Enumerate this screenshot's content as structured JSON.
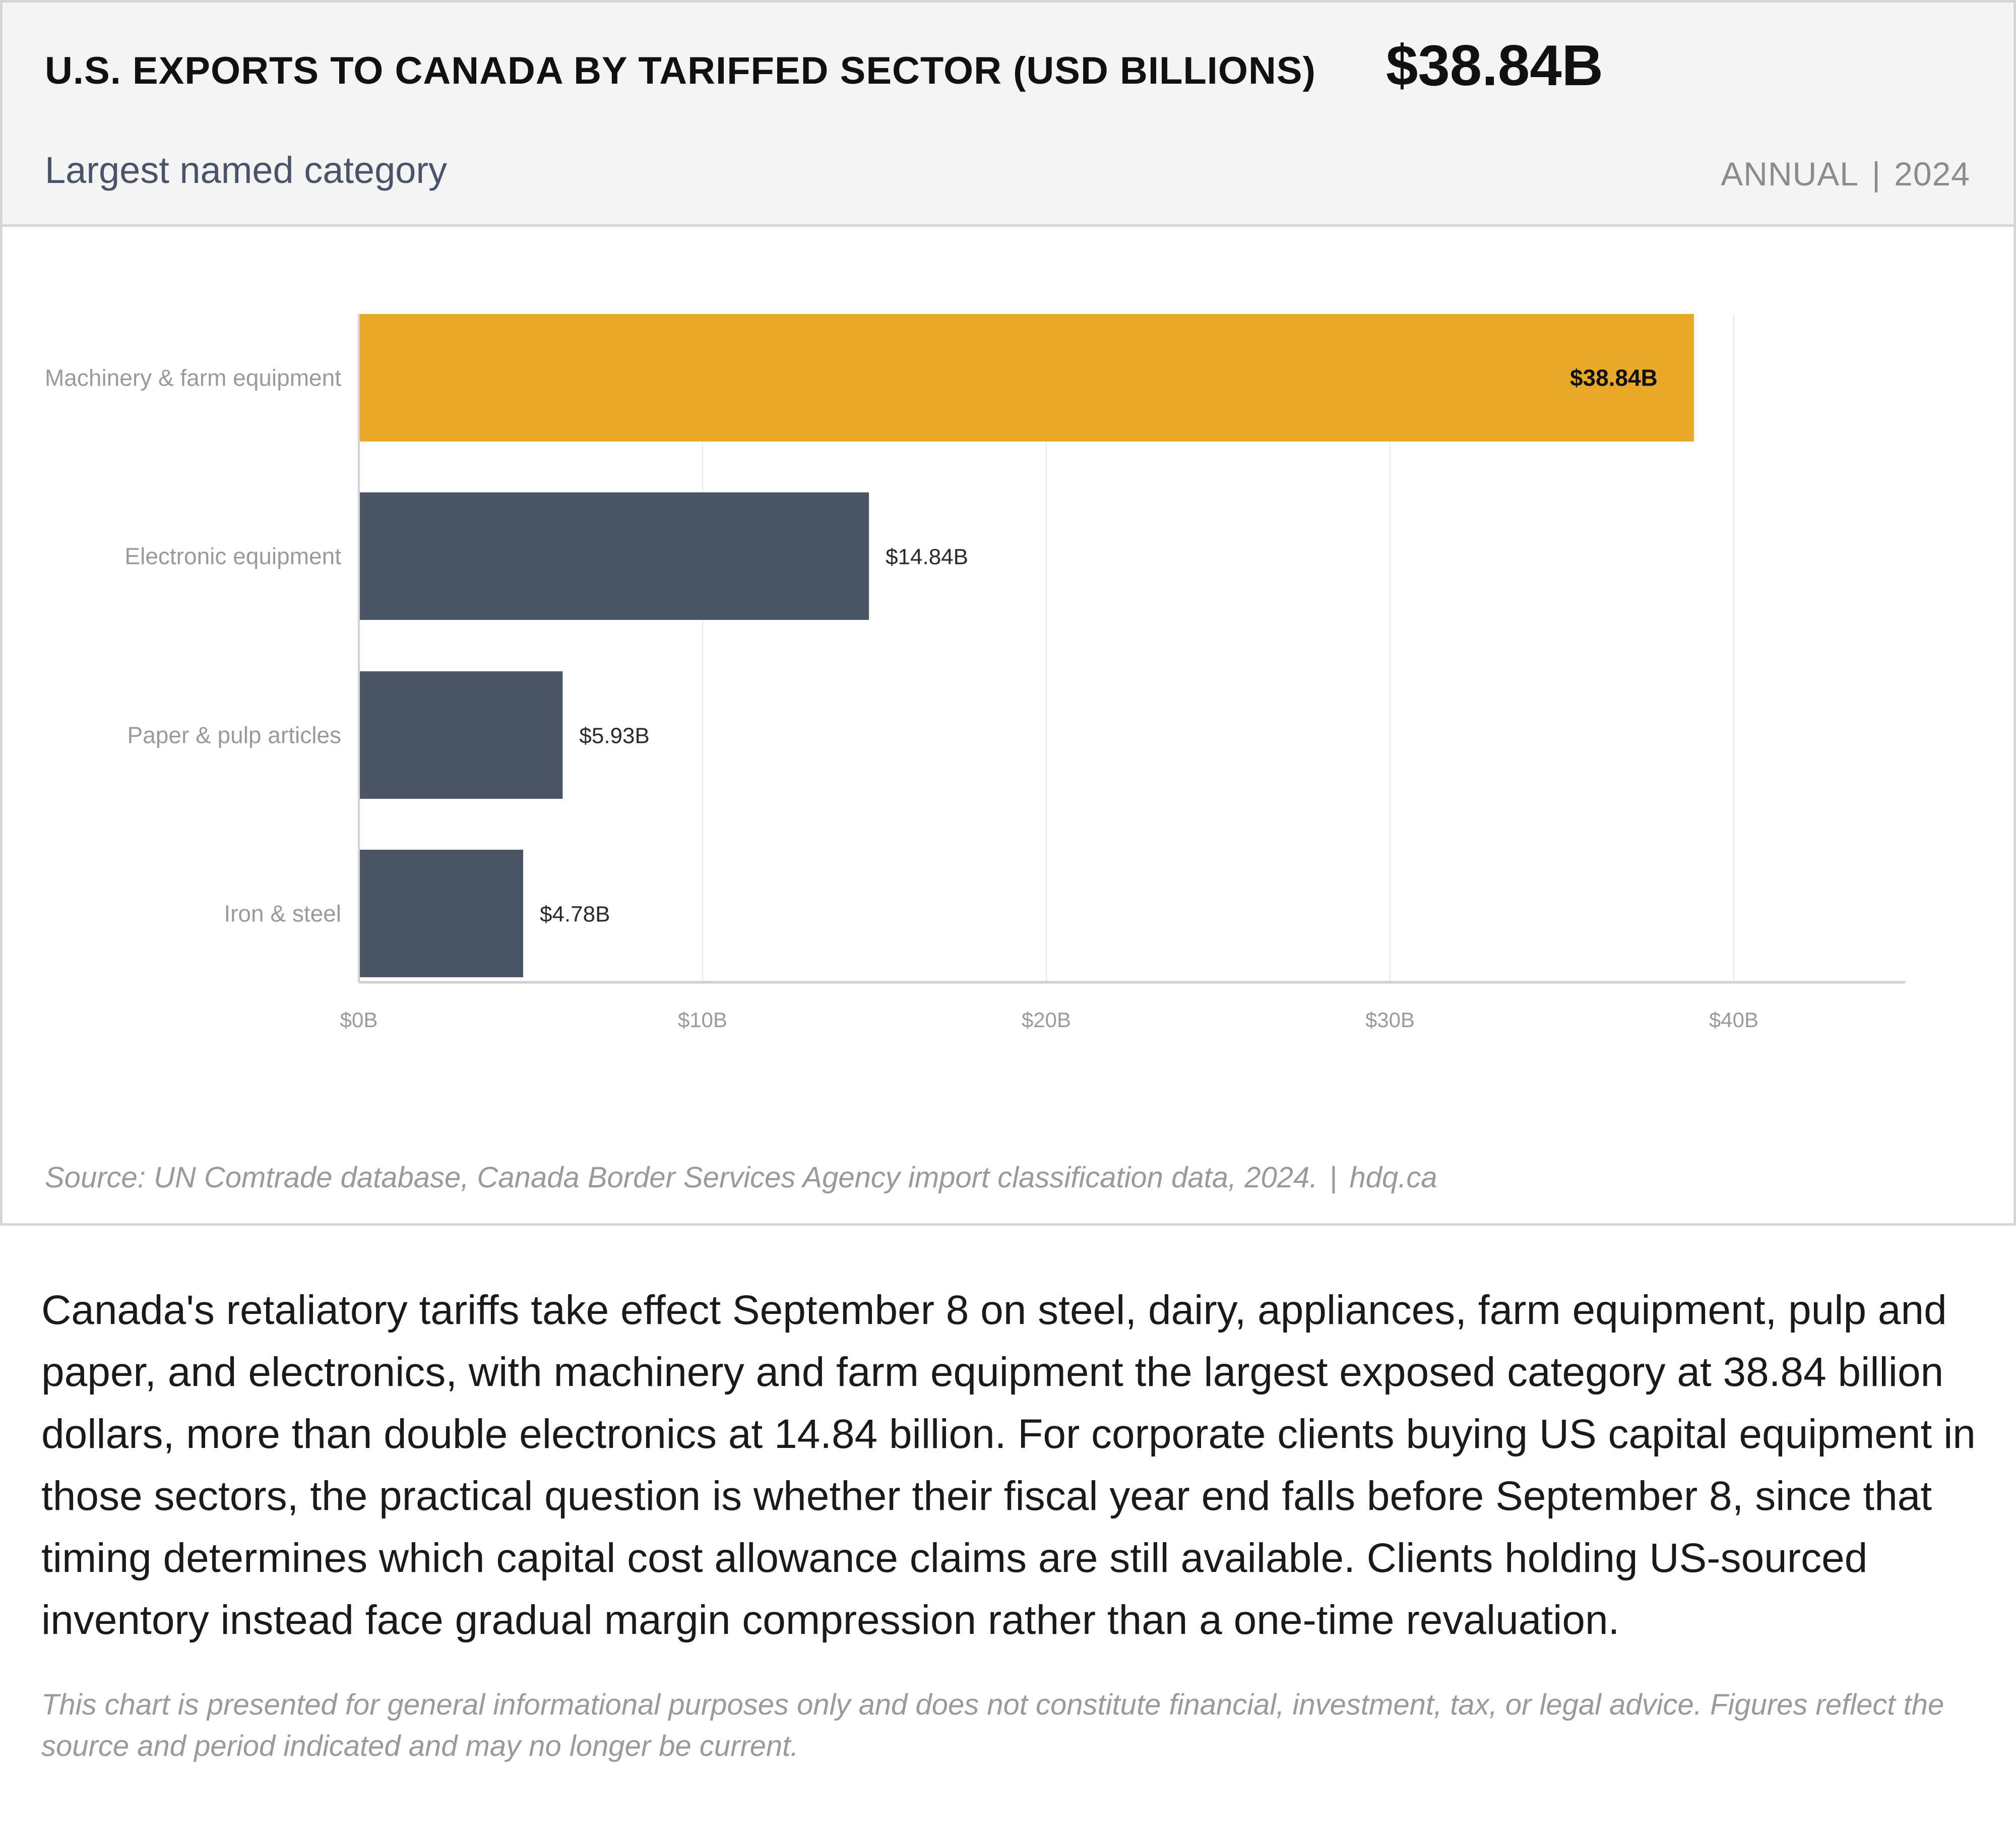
{
  "header": {
    "title": "U.S. EXPORTS TO CANADA BY TARIFFED SECTOR (USD BILLIONS)",
    "headline_value": "$38.84B",
    "headline_caption": "Largest named category",
    "period_frequency": "ANNUAL",
    "period_separator": "|",
    "period_year": "2024"
  },
  "chart_data": {
    "type": "bar",
    "orientation": "horizontal",
    "categories": [
      "Machinery & farm equipment",
      "Electronic equipment",
      "Paper & pulp articles",
      "Iron & steel"
    ],
    "values": [
      38.84,
      14.84,
      5.93,
      4.78
    ],
    "data_labels": [
      "$38.84B",
      "$14.84B",
      "$5.93B",
      "$4.78B"
    ],
    "x_ticks": [
      0,
      10,
      20,
      30,
      40
    ],
    "x_tick_labels": [
      "$0B",
      "$10B",
      "$20B",
      "$30B",
      "$40B"
    ],
    "xlim": [
      0,
      45
    ],
    "unit": "USD billions",
    "grid": "vertical",
    "highlight_index": 0,
    "colors": {
      "highlight": "#E8A828",
      "default": "#4A5566",
      "grid": "#EEEEEE",
      "axis": "#D0D0D0"
    }
  },
  "source": {
    "text": "Source: UN Comtrade database, Canada Border Services Agency import classification data, 2024.",
    "separator": "|",
    "site": "hdq.ca"
  },
  "commentary": "Canada's retaliatory tariffs take effect September 8 on steel, dairy, appliances, farm equipment, pulp and paper, and electronics, with machinery and farm equipment the largest exposed category at 38.84 billion dollars, more than double electronics at 14.84 billion. For corporate clients buying US capital equipment in those sectors, the practical question is whether their fiscal year end falls before September 8, since that timing determines which capital cost allowance claims are still available. Clients holding US-sourced inventory instead face gradual margin compression rather than a one-time revaluation.",
  "disclaimer": "This chart is presented for general informational purposes only and does not constitute financial, investment, tax, or legal advice. Figures reflect the source and period indicated and may no longer be current."
}
